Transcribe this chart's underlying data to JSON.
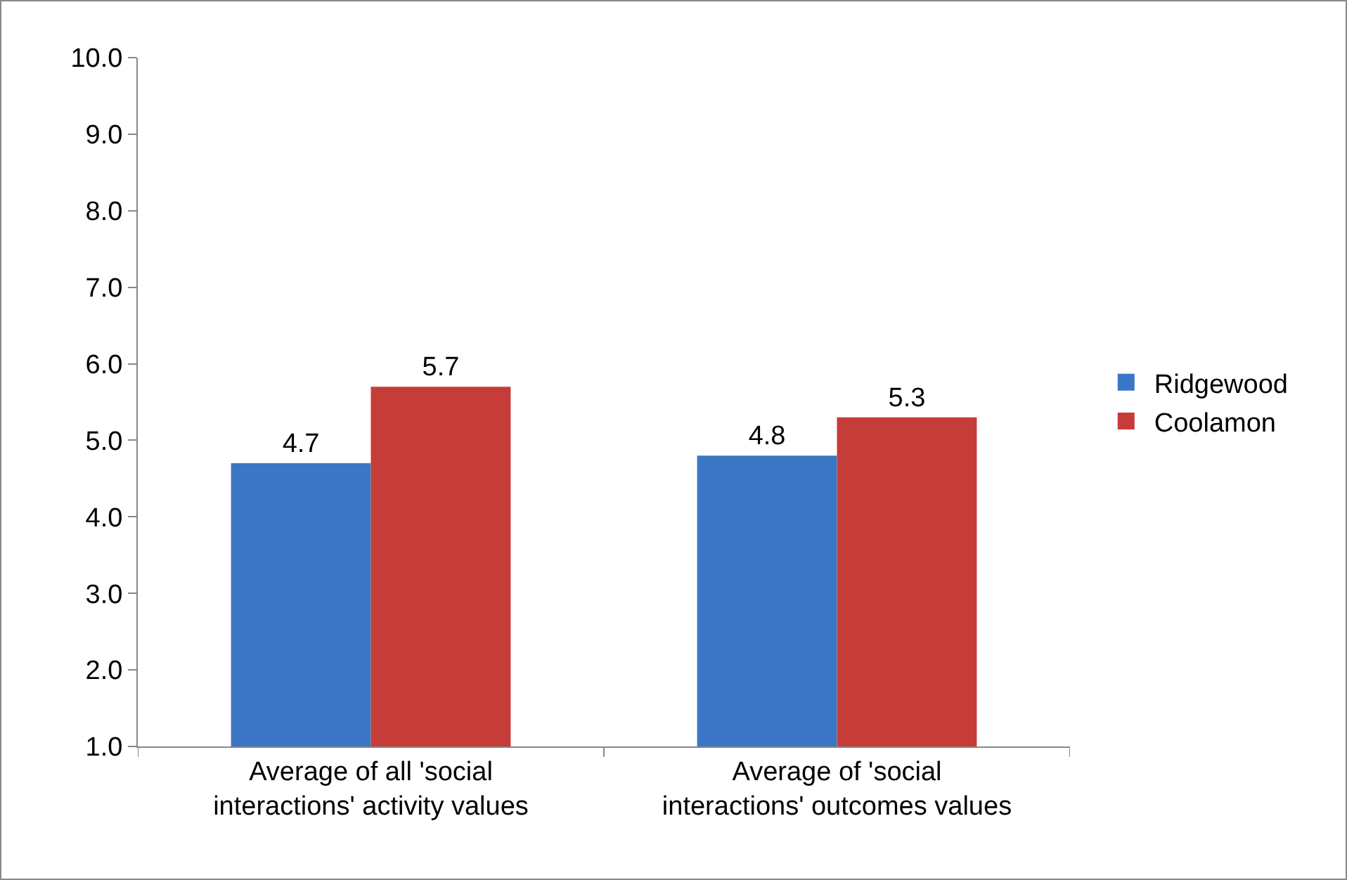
{
  "chart_data": {
    "type": "bar",
    "categories": [
      "Average of all 'social interactions' activity values",
      "Average of 'social interactions' outcomes values"
    ],
    "series": [
      {
        "name": "Ridgewood",
        "color": "#3a76c4",
        "values": [
          4.7,
          4.8
        ]
      },
      {
        "name": "Coolamon",
        "color": "#c63c38",
        "values": [
          5.7,
          5.3
        ]
      }
    ],
    "ylim": [
      1,
      10
    ],
    "yticks": [
      {
        "value": 1,
        "label": "1.0"
      },
      {
        "value": 2,
        "label": "2.0"
      },
      {
        "value": 3,
        "label": "3.0"
      },
      {
        "value": 4,
        "label": "4.0"
      },
      {
        "value": 5,
        "label": "5.0"
      },
      {
        "value": 6,
        "label": "6.0"
      },
      {
        "value": 7,
        "label": "7.0"
      },
      {
        "value": 8,
        "label": "8.0"
      },
      {
        "value": 9,
        "label": "9.0"
      },
      {
        "value": 10,
        "label": "10.0"
      }
    ],
    "grid": false,
    "legend": "right",
    "data_labels": true
  }
}
